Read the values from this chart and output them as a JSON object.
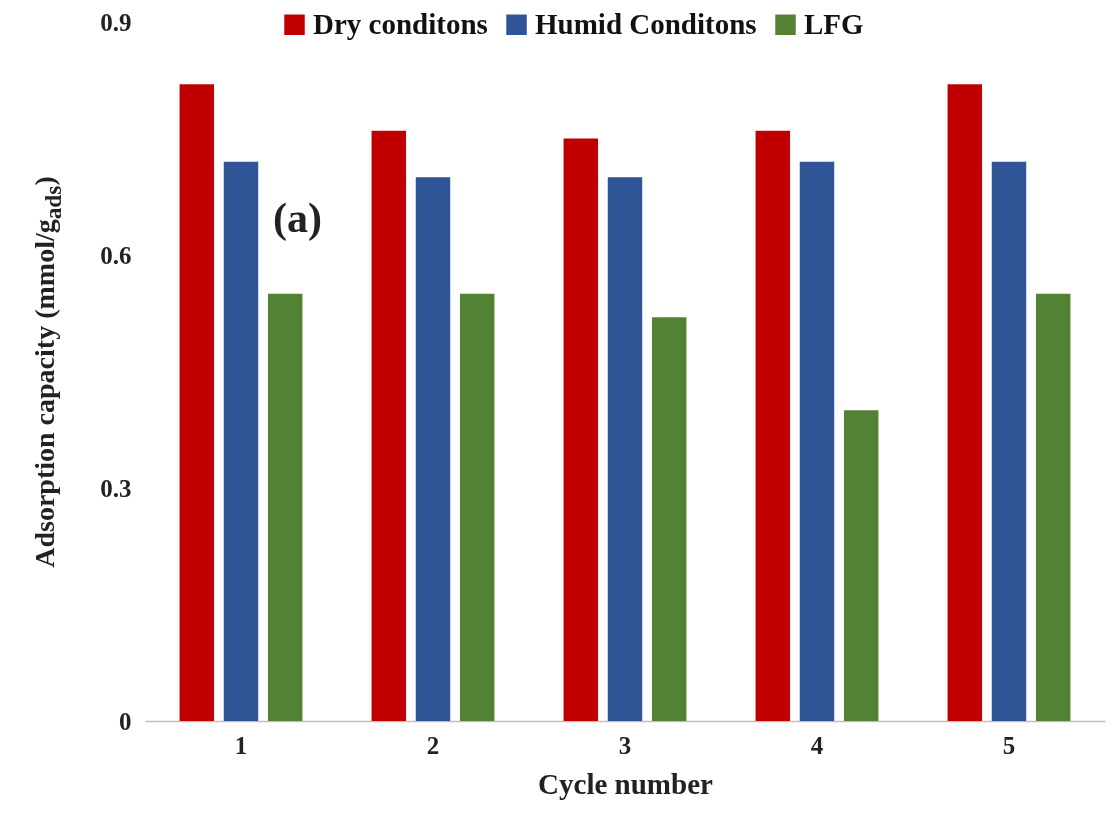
{
  "chart_data": {
    "type": "bar",
    "xlabel": "Cycle number",
    "ylabel": "Adsorption capacity (mmol/g$_{ads}$)",
    "categories": [
      "1",
      "2",
      "3",
      "4",
      "5"
    ],
    "series": [
      {
        "name": "Dry conditons",
        "color": "#c00000",
        "values": [
          0.82,
          0.76,
          0.75,
          0.76,
          0.82
        ]
      },
      {
        "name": "Humid Conditons",
        "color": "#2f5597",
        "values": [
          0.72,
          0.7,
          0.7,
          0.72,
          0.72
        ]
      },
      {
        "name": "LFG",
        "color": "#548235",
        "values": [
          0.55,
          0.55,
          0.52,
          0.4,
          0.55
        ]
      }
    ],
    "ylim": [
      0,
      0.9
    ],
    "yticks": [
      0,
      0.3,
      0.6,
      0.9
    ],
    "legend": "top",
    "annotations": [
      "(a)"
    ]
  }
}
